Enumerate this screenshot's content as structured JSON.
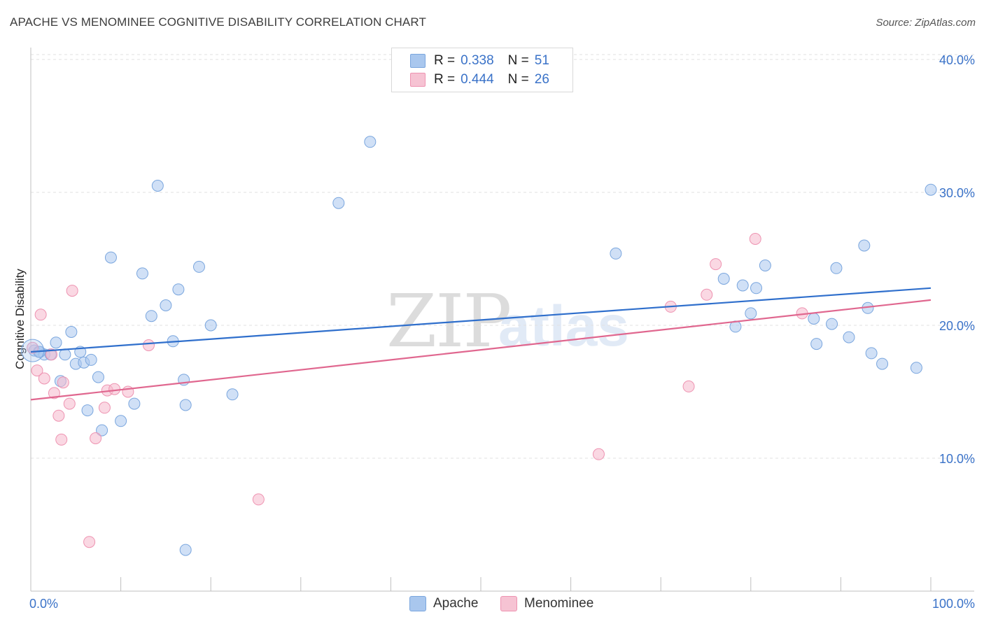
{
  "header": {
    "title": "APACHE VS MENOMINEE COGNITIVE DISABILITY CORRELATION CHART",
    "source": "Source: ZipAtlas.com"
  },
  "watermark": {
    "zip": "ZIP",
    "atlas": "atlas"
  },
  "legend_top": {
    "rows": [
      {
        "r_label": "R =",
        "r_value": "0.338",
        "n_label": "N =",
        "n_value": "51"
      },
      {
        "r_label": "R =",
        "r_value": "0.444",
        "n_label": "N =",
        "n_value": "26"
      }
    ]
  },
  "legend_bottom": {
    "items": [
      "Apache",
      "Menominee"
    ]
  },
  "colors": {
    "apache_fill": "#a9c7ee",
    "apache_stroke": "#7aa6de",
    "apache_line": "#2f6fcc",
    "menominee_fill": "#f6b8cc",
    "menominee_stroke": "#ee93b1",
    "menominee_line": "#e0678f",
    "axis_text": "#3a72c8"
  },
  "chart_data": {
    "type": "scatter",
    "title": "APACHE VS MENOMINEE COGNITIVE DISABILITY CORRELATION CHART",
    "xlabel": "",
    "ylabel": "Cognitive Disability",
    "xlim": [
      0,
      100
    ],
    "ylim": [
      0,
      40
    ],
    "x_tick_labels": [
      "0.0%",
      "100.0%"
    ],
    "y_ticks": [
      10,
      20,
      30,
      40
    ],
    "y_tick_labels": [
      "10.0%",
      "20.0%",
      "30.0%",
      "40.0%"
    ],
    "grid": true,
    "series": [
      {
        "name": "Apache",
        "r": 0.338,
        "n": 51,
        "trend": {
          "x": [
            0,
            100
          ],
          "y": [
            18.0,
            22.8
          ]
        },
        "points": [
          [
            0.4,
            18.1
          ],
          [
            0.9,
            18.0
          ],
          [
            1.5,
            17.8
          ],
          [
            2.2,
            17.8
          ],
          [
            2.8,
            18.7
          ],
          [
            3.3,
            15.8
          ],
          [
            3.8,
            17.8
          ],
          [
            4.5,
            19.5
          ],
          [
            5.0,
            17.1
          ],
          [
            5.5,
            18.0
          ],
          [
            5.9,
            17.2
          ],
          [
            6.3,
            13.6
          ],
          [
            6.7,
            17.4
          ],
          [
            7.5,
            16.1
          ],
          [
            7.9,
            12.1
          ],
          [
            8.9,
            25.1
          ],
          [
            10.0,
            12.8
          ],
          [
            11.5,
            14.1
          ],
          [
            12.4,
            23.9
          ],
          [
            13.4,
            20.7
          ],
          [
            14.1,
            30.5
          ],
          [
            15.0,
            21.5
          ],
          [
            15.8,
            18.8
          ],
          [
            16.4,
            22.7
          ],
          [
            17.0,
            15.9
          ],
          [
            17.2,
            14.0
          ],
          [
            18.7,
            24.4
          ],
          [
            20.0,
            20.0
          ],
          [
            22.4,
            14.8
          ],
          [
            34.2,
            29.2
          ],
          [
            37.7,
            33.8
          ],
          [
            65.0,
            25.4
          ],
          [
            77.0,
            23.5
          ],
          [
            78.3,
            19.9
          ],
          [
            79.1,
            23.0
          ],
          [
            80.0,
            20.9
          ],
          [
            80.6,
            22.8
          ],
          [
            81.6,
            24.5
          ],
          [
            87.0,
            20.5
          ],
          [
            87.3,
            18.6
          ],
          [
            89.0,
            20.1
          ],
          [
            89.5,
            24.3
          ],
          [
            90.9,
            19.1
          ],
          [
            92.6,
            26.0
          ],
          [
            93.0,
            21.3
          ],
          [
            93.4,
            17.9
          ],
          [
            94.6,
            17.1
          ],
          [
            98.4,
            16.8
          ],
          [
            100.0,
            30.2
          ],
          [
            1.0,
            18.0
          ],
          [
            17.2,
            3.1
          ]
        ]
      },
      {
        "name": "Menominee",
        "r": 0.444,
        "n": 26,
        "trend": {
          "x": [
            0,
            100
          ],
          "y": [
            14.4,
            21.9
          ]
        },
        "points": [
          [
            0.2,
            18.3
          ],
          [
            0.7,
            16.6
          ],
          [
            1.1,
            20.8
          ],
          [
            1.5,
            16.0
          ],
          [
            2.3,
            17.8
          ],
          [
            2.6,
            14.9
          ],
          [
            3.1,
            13.2
          ],
          [
            3.4,
            11.4
          ],
          [
            3.6,
            15.7
          ],
          [
            4.3,
            14.1
          ],
          [
            4.6,
            22.6
          ],
          [
            6.5,
            3.7
          ],
          [
            7.2,
            11.5
          ],
          [
            8.2,
            13.8
          ],
          [
            8.5,
            15.1
          ],
          [
            9.3,
            15.2
          ],
          [
            10.8,
            15.0
          ],
          [
            13.1,
            18.5
          ],
          [
            25.3,
            6.9
          ],
          [
            63.1,
            10.3
          ],
          [
            71.1,
            21.4
          ],
          [
            73.1,
            15.4
          ],
          [
            75.1,
            22.3
          ],
          [
            76.1,
            24.6
          ],
          [
            80.5,
            26.5
          ],
          [
            85.7,
            20.9
          ]
        ]
      }
    ]
  }
}
